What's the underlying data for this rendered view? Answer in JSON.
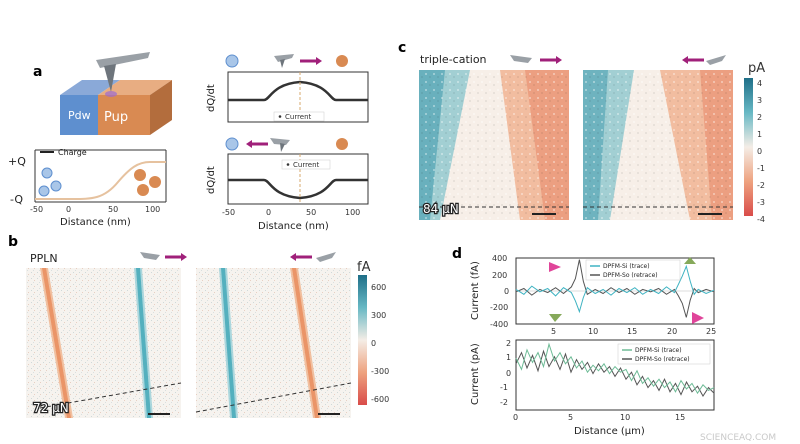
{
  "panels": {
    "a": {
      "label": "a",
      "device": {
        "left_label": "Pdw",
        "right_label": "Pup"
      },
      "charge_plot": {
        "legend": "Charge",
        "y_top": "+Q",
        "y_bottom": "-Q",
        "xlabel": "Distance (nm)",
        "xticks": [
          "-50",
          "0",
          "50",
          "100"
        ]
      },
      "current_plots": {
        "ylabel": "dQ/dt",
        "legend": "Current",
        "xlabel": "Distance (nm)",
        "xticks": [
          "-50",
          "0",
          "50",
          "100"
        ]
      }
    },
    "b": {
      "label": "b",
      "title": "PPLN",
      "force": "72 μN",
      "colorbar": {
        "unit": "fA",
        "ticks": [
          "600",
          "300",
          "0",
          "-300",
          "-600"
        ]
      }
    },
    "c": {
      "label": "c",
      "title": "triple-cation",
      "force": "84 μN",
      "colorbar": {
        "unit": "pA",
        "ticks": [
          "4",
          "3",
          "2",
          "1",
          "0",
          "-1",
          "-2",
          "-3",
          "-4"
        ]
      }
    },
    "d": {
      "label": "d",
      "top_plot": {
        "ylabel": "Current (fA)",
        "yticks": [
          "400",
          "200",
          "0",
          "-200",
          "-400"
        ],
        "xticks": [
          "5",
          "10",
          "15",
          "20",
          "25"
        ],
        "legend": [
          "DPFM-Si (trace)",
          "DPFM-So (retrace)"
        ]
      },
      "bottom_plot": {
        "ylabel": "Current (pA)",
        "yticks": [
          "2",
          "1",
          "0",
          "-1",
          "-2"
        ],
        "xticks": [
          "0",
          "5",
          "10",
          "15"
        ],
        "legend": [
          "DPFM-Si (trace)",
          "DPFM-So (retrace)"
        ]
      },
      "xlabel": "Distance (μm)"
    }
  },
  "watermark": "SCIENCEAQ.COM",
  "colors": {
    "trace": "#3fb3c2",
    "retrace": "#555555",
    "pos_cmap": "#2a8ea6",
    "neg_cmap": "#e05a4e",
    "pdw": "#5e8fcf",
    "pup": "#d98a52",
    "arrow": "#a0207a",
    "marker_pink": "#e0459a",
    "marker_green": "#86a95a"
  },
  "chart_data": [
    {
      "type": "line",
      "panel": "d-top",
      "xlabel": "Distance (μm)",
      "ylabel": "Current (fA)",
      "xlim": [
        0,
        25
      ],
      "ylim": [
        -400,
        400
      ],
      "series": [
        {
          "name": "DPFM-Si (trace)",
          "x": [
            0,
            1,
            2,
            3,
            4,
            5,
            6,
            7,
            7.5,
            8,
            8.5,
            9,
            10,
            11,
            12,
            13,
            14,
            15,
            16,
            17,
            18,
            19,
            20,
            20.5,
            21,
            21.5,
            22,
            22.5,
            23,
            24,
            25
          ],
          "y": [
            20,
            -40,
            60,
            -10,
            30,
            -60,
            40,
            -20,
            -120,
            -250,
            -80,
            40,
            -30,
            20,
            -50,
            30,
            -20,
            40,
            -40,
            20,
            -30,
            50,
            -20,
            80,
            180,
            300,
            120,
            -40,
            20,
            -30,
            10
          ]
        },
        {
          "name": "DPFM-So (retrace)",
          "x": [
            0,
            1,
            2,
            3,
            4,
            5,
            6,
            7,
            7.5,
            8,
            8.5,
            9,
            10,
            11,
            12,
            13,
            14,
            15,
            16,
            17,
            18,
            19,
            20,
            20.5,
            21,
            21.5,
            22,
            22.5,
            23,
            24,
            25
          ],
          "y": [
            -10,
            30,
            -50,
            20,
            -20,
            40,
            -30,
            50,
            150,
            380,
            120,
            -40,
            20,
            -30,
            40,
            -20,
            30,
            -40,
            20,
            -10,
            30,
            -40,
            20,
            -60,
            -150,
            -320,
            -110,
            30,
            -20,
            20,
            -10
          ]
        }
      ]
    },
    {
      "type": "line",
      "panel": "d-bottom",
      "xlabel": "Distance (μm)",
      "ylabel": "Current (pA)",
      "xlim": [
        0,
        18
      ],
      "ylim": [
        -2.5,
        2.5
      ],
      "series": [
        {
          "name": "DPFM-Si (trace)",
          "x": [
            0,
            0.5,
            1,
            1.5,
            2,
            2.5,
            3,
            3.5,
            4,
            4.5,
            5,
            5.5,
            6,
            6.5,
            7,
            7.5,
            8,
            8.5,
            9,
            9.5,
            10,
            10.5,
            11,
            11.5,
            12,
            12.5,
            13,
            13.5,
            14,
            14.5,
            15,
            15.5,
            16,
            16.5,
            17,
            17.5,
            18
          ],
          "y": [
            1.2,
            0.4,
            1.8,
            0.9,
            1.6,
            0.6,
            2.2,
            1.0,
            1.6,
            0.8,
            1.3,
            0.5,
            1.0,
            0.2,
            0.7,
            0.3,
            0.8,
            0.1,
            0.6,
            0.2,
            0.4,
            -0.4,
            0.3,
            -0.6,
            -0.2,
            -0.8,
            -0.3,
            -0.9,
            -0.5,
            -1.2,
            -0.4,
            -1.0,
            -0.6,
            -1.3,
            -0.7,
            -1.1,
            -0.9
          ]
        },
        {
          "name": "DPFM-So (retrace)",
          "x": [
            0,
            0.5,
            1,
            1.5,
            2,
            2.5,
            3,
            3.5,
            4,
            4.5,
            5,
            5.5,
            6,
            6.5,
            7,
            7.5,
            8,
            8.5,
            9,
            9.5,
            10,
            10.5,
            11,
            11.5,
            12,
            12.5,
            13,
            13.5,
            14,
            14.5,
            15,
            15.5,
            16,
            16.5,
            17,
            17.5,
            18
          ],
          "y": [
            0.8,
            1.6,
            0.5,
            1.4,
            0.3,
            1.7,
            0.6,
            1.3,
            0.4,
            1.5,
            0.2,
            1.1,
            0.4,
            0.9,
            0.1,
            0.8,
            0.2,
            0.6,
            -0.1,
            0.5,
            -0.3,
            0.2,
            -0.7,
            -0.1,
            -0.9,
            -0.4,
            -1.1,
            -0.3,
            -1.2,
            -0.6,
            -1.4,
            -0.5,
            -1.2,
            -0.8,
            -1.5,
            -0.9,
            -1.3
          ]
        }
      ]
    }
  ]
}
